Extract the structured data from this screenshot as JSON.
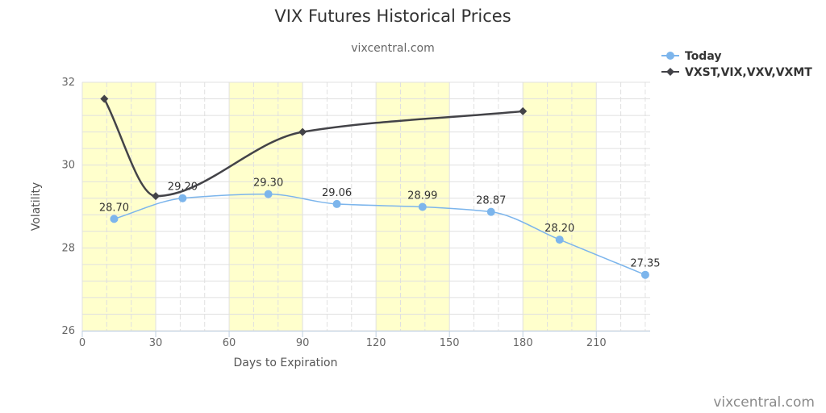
{
  "chart_data": {
    "type": "line",
    "title": "VIX Futures Historical Prices",
    "subtitle": "vixcentral.com",
    "credit": "vixcentral.com",
    "xlabel": "Days to Expiration",
    "ylabel": "Volatility",
    "xlim": [
      0,
      232
    ],
    "ylim": [
      26,
      32
    ],
    "x_ticks": [
      0,
      30,
      60,
      90,
      120,
      150,
      180,
      210
    ],
    "y_ticks": [
      26,
      28,
      30,
      32
    ],
    "grid": true,
    "legend_position": "top-right",
    "shaded_bands": [
      [
        0,
        30
      ],
      [
        60,
        90
      ],
      [
        120,
        150
      ],
      [
        180,
        210
      ]
    ],
    "series": [
      {
        "name": "Today",
        "color": "#7cb5ec",
        "marker": "circle",
        "x": [
          13,
          41,
          76,
          104,
          139,
          167,
          195,
          230
        ],
        "y": [
          28.7,
          29.2,
          29.3,
          29.06,
          28.99,
          28.87,
          28.2,
          27.35
        ],
        "labels": [
          "28.70",
          "29.20",
          "29.30",
          "29.06",
          "28.99",
          "28.87",
          "28.20",
          "27.35"
        ]
      },
      {
        "name": "VXST,VIX,VXV,VXMT",
        "color": "#434348",
        "marker": "diamond",
        "x": [
          9,
          30,
          90,
          180
        ],
        "y": [
          31.6,
          29.25,
          30.8,
          31.3
        ]
      }
    ]
  },
  "colors": {
    "band": "#ffffcc",
    "grid": "#e0e0e0",
    "axis": "#c0d0e0"
  }
}
